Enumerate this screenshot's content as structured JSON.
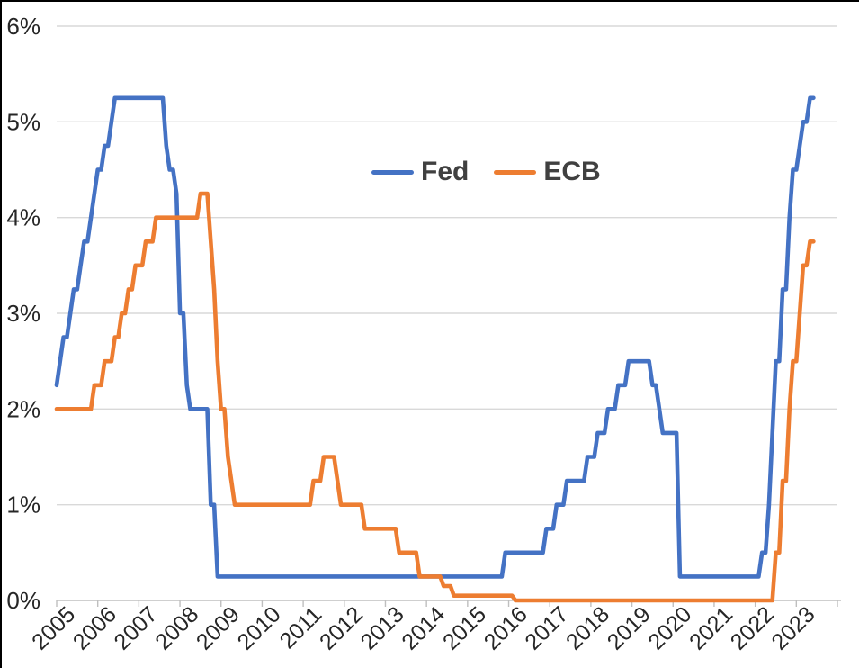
{
  "colors": {
    "background": "#FFFFFF",
    "frame_border": "#000000",
    "grid": "#D9D9D9",
    "axis": "#BFBFBF",
    "axis_text": "#262626",
    "legend_text": "#404040",
    "fed_line": "#4472C4",
    "ecb_line": "#ED7D31"
  },
  "chart_data": {
    "type": "line",
    "title": "",
    "xlabel": "",
    "ylabel": "",
    "x_start": "2005-01",
    "x_end": "2023-06",
    "x_frequency": "monthly",
    "ylim": [
      0,
      6
    ],
    "grid": true,
    "legend_position": "top-center-inside",
    "yticks": [
      "0%",
      "1%",
      "2%",
      "3%",
      "4%",
      "5%",
      "6%"
    ],
    "xticks": [
      "2005",
      "2006",
      "2007",
      "2008",
      "2009",
      "2010",
      "2011",
      "2012",
      "2013",
      "2014",
      "2015",
      "2016",
      "2017",
      "2018",
      "2019",
      "2020",
      "2021",
      "2022",
      "2023"
    ],
    "series": [
      {
        "name": "Fed",
        "color": "#4472C4",
        "values": [
          2.25,
          2.5,
          2.75,
          2.75,
          3,
          3.25,
          3.25,
          3.5,
          3.75,
          3.75,
          4,
          4.25,
          4.5,
          4.5,
          4.75,
          4.75,
          5,
          5.25,
          5.25,
          5.25,
          5.25,
          5.25,
          5.25,
          5.25,
          5.25,
          5.25,
          5.25,
          5.25,
          5.25,
          5.25,
          5.25,
          5.25,
          4.75,
          4.5,
          4.5,
          4.25,
          3,
          3,
          2.25,
          2,
          2,
          2,
          2,
          2,
          2,
          1,
          1,
          0.25,
          0.25,
          0.25,
          0.25,
          0.25,
          0.25,
          0.25,
          0.25,
          0.25,
          0.25,
          0.25,
          0.25,
          0.25,
          0.25,
          0.25,
          0.25,
          0.25,
          0.25,
          0.25,
          0.25,
          0.25,
          0.25,
          0.25,
          0.25,
          0.25,
          0.25,
          0.25,
          0.25,
          0.25,
          0.25,
          0.25,
          0.25,
          0.25,
          0.25,
          0.25,
          0.25,
          0.25,
          0.25,
          0.25,
          0.25,
          0.25,
          0.25,
          0.25,
          0.25,
          0.25,
          0.25,
          0.25,
          0.25,
          0.25,
          0.25,
          0.25,
          0.25,
          0.25,
          0.25,
          0.25,
          0.25,
          0.25,
          0.25,
          0.25,
          0.25,
          0.25,
          0.25,
          0.25,
          0.25,
          0.25,
          0.25,
          0.25,
          0.25,
          0.25,
          0.25,
          0.25,
          0.25,
          0.25,
          0.25,
          0.25,
          0.25,
          0.25,
          0.25,
          0.25,
          0.25,
          0.25,
          0.25,
          0.25,
          0.25,
          0.5,
          0.5,
          0.5,
          0.5,
          0.5,
          0.5,
          0.5,
          0.5,
          0.5,
          0.5,
          0.5,
          0.5,
          0.75,
          0.75,
          0.75,
          1,
          1,
          1,
          1.25,
          1.25,
          1.25,
          1.25,
          1.25,
          1.25,
          1.5,
          1.5,
          1.5,
          1.75,
          1.75,
          1.75,
          2,
          2,
          2,
          2.25,
          2.25,
          2.25,
          2.5,
          2.5,
          2.5,
          2.5,
          2.5,
          2.5,
          2.5,
          2.25,
          2.25,
          2,
          1.75,
          1.75,
          1.75,
          1.75,
          1.75,
          0.25,
          0.25,
          0.25,
          0.25,
          0.25,
          0.25,
          0.25,
          0.25,
          0.25,
          0.25,
          0.25,
          0.25,
          0.25,
          0.25,
          0.25,
          0.25,
          0.25,
          0.25,
          0.25,
          0.25,
          0.25,
          0.25,
          0.25,
          0.25,
          0.5,
          0.5,
          1,
          1.75,
          2.5,
          2.5,
          3.25,
          3.25,
          4,
          4.5,
          4.5,
          4.75,
          5,
          5,
          5.25,
          5.25
        ]
      },
      {
        "name": "ECB",
        "color": "#ED7D31",
        "values": [
          2,
          2,
          2,
          2,
          2,
          2,
          2,
          2,
          2,
          2,
          2,
          2.25,
          2.25,
          2.25,
          2.5,
          2.5,
          2.5,
          2.75,
          2.75,
          3,
          3,
          3.25,
          3.25,
          3.5,
          3.5,
          3.5,
          3.75,
          3.75,
          3.75,
          4,
          4,
          4,
          4,
          4,
          4,
          4,
          4,
          4,
          4,
          4,
          4,
          4,
          4.25,
          4.25,
          4.25,
          3.75,
          3.25,
          2.5,
          2,
          2,
          1.5,
          1.25,
          1,
          1,
          1,
          1,
          1,
          1,
          1,
          1,
          1,
          1,
          1,
          1,
          1,
          1,
          1,
          1,
          1,
          1,
          1,
          1,
          1,
          1,
          1,
          1.25,
          1.25,
          1.25,
          1.5,
          1.5,
          1.5,
          1.5,
          1.25,
          1,
          1,
          1,
          1,
          1,
          1,
          1,
          0.75,
          0.75,
          0.75,
          0.75,
          0.75,
          0.75,
          0.75,
          0.75,
          0.75,
          0.75,
          0.5,
          0.5,
          0.5,
          0.5,
          0.5,
          0.5,
          0.25,
          0.25,
          0.25,
          0.25,
          0.25,
          0.25,
          0.25,
          0.15,
          0.15,
          0.15,
          0.05,
          0.05,
          0.05,
          0.05,
          0.05,
          0.05,
          0.05,
          0.05,
          0.05,
          0.05,
          0.05,
          0.05,
          0.05,
          0.05,
          0.05,
          0.05,
          0.05,
          0.05,
          0,
          0,
          0,
          0,
          0,
          0,
          0,
          0,
          0,
          0,
          0,
          0,
          0,
          0,
          0,
          0,
          0,
          0,
          0,
          0,
          0,
          0,
          0,
          0,
          0,
          0,
          0,
          0,
          0,
          0,
          0,
          0,
          0,
          0,
          0,
          0,
          0,
          0,
          0,
          0,
          0,
          0,
          0,
          0,
          0,
          0,
          0,
          0,
          0,
          0,
          0,
          0,
          0,
          0,
          0,
          0,
          0,
          0,
          0,
          0,
          0,
          0,
          0,
          0,
          0,
          0,
          0,
          0,
          0,
          0,
          0,
          0,
          0,
          0,
          0,
          0,
          0.5,
          0.5,
          1.25,
          1.25,
          2,
          2.5,
          2.5,
          3,
          3.5,
          3.5,
          3.75,
          3.75
        ]
      }
    ]
  }
}
